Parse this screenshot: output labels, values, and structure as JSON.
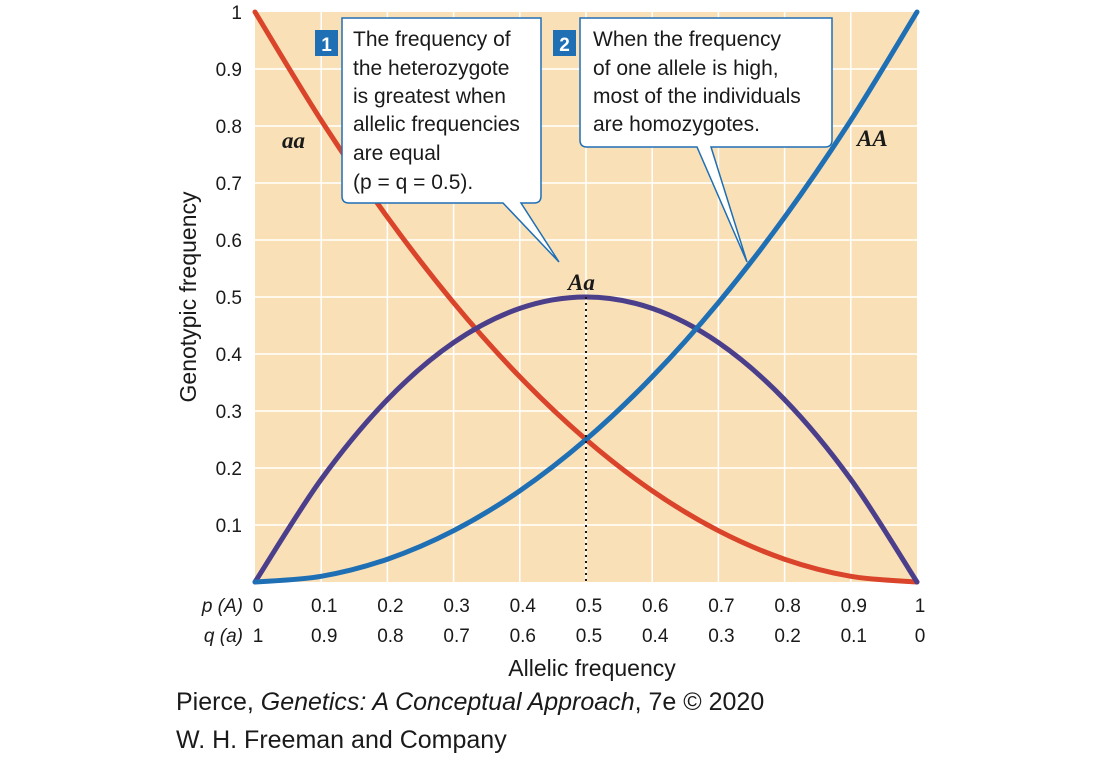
{
  "chart_data": {
    "type": "line",
    "ylabel": "Genotypic frequency",
    "xlabel": "Allelic frequency",
    "x_row_labels": {
      "p": "p (A)",
      "q": "q (a)"
    },
    "p_ticks": [
      "0",
      "0.1",
      "0.2",
      "0.3",
      "0.4",
      "0.5",
      "0.6",
      "0.7",
      "0.8",
      "0.9",
      "1"
    ],
    "q_ticks": [
      "1",
      "0.9",
      "0.8",
      "0.7",
      "0.6",
      "0.5",
      "0.4",
      "0.3",
      "0.2",
      "0.1",
      "0"
    ],
    "y_ticks": [
      "1",
      "0.9",
      "0.8",
      "0.7",
      "0.6",
      "0.5",
      "0.4",
      "0.3",
      "0.2",
      "0.1"
    ],
    "xlim": [
      0,
      1
    ],
    "ylim": [
      0,
      1
    ],
    "grid": true,
    "x": [
      0,
      0.1,
      0.2,
      0.3,
      0.4,
      0.5,
      0.6,
      0.7,
      0.8,
      0.9,
      1
    ],
    "series": [
      {
        "name": "aa",
        "color": "#d9442b",
        "values": [
          1,
          0.81,
          0.64,
          0.49,
          0.36,
          0.25,
          0.16,
          0.09,
          0.04,
          0.01,
          0
        ]
      },
      {
        "name": "Aa",
        "color": "#4b3f8c",
        "values": [
          0,
          0.18,
          0.32,
          0.42,
          0.48,
          0.5,
          0.48,
          0.42,
          0.32,
          0.18,
          0
        ]
      },
      {
        "name": "AA",
        "color": "#1f6fb5",
        "values": [
          0,
          0.01,
          0.04,
          0.09,
          0.16,
          0.25,
          0.36,
          0.49,
          0.64,
          0.81,
          1
        ]
      }
    ],
    "annotations": [
      {
        "number": "1",
        "lines": [
          "The frequency of",
          "the heterozygote",
          "is greatest when",
          "allelic frequencies",
          "are equal",
          "(p = q = 0.5)."
        ]
      },
      {
        "number": "2",
        "lines": [
          "When the frequency",
          "of one allele is high,",
          "most of the individuals",
          "are homozygotes."
        ]
      }
    ]
  },
  "colors": {
    "plot_bg": "#f9e0b7",
    "grid": "#ffffff",
    "badge": "#1f6fb5",
    "callout_border": "#1f6fb5"
  },
  "credit": {
    "line1_prefix": "Pierce, ",
    "line1_title": "Genetics: A Conceptual Approach",
    "line1_suffix": ", 7e © 2020",
    "line2": "W. H. Freeman and Company"
  }
}
